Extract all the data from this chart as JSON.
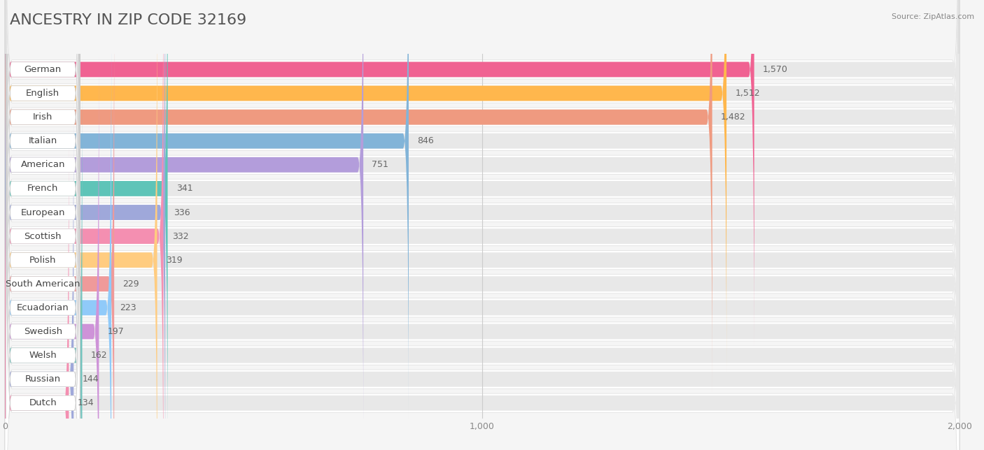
{
  "title": "ANCESTRY IN ZIP CODE 32169",
  "source": "Source: ZipAtlas.com",
  "categories": [
    "German",
    "English",
    "Irish",
    "Italian",
    "American",
    "French",
    "European",
    "Scottish",
    "Polish",
    "South American",
    "Ecuadorian",
    "Swedish",
    "Welsh",
    "Russian",
    "Dutch"
  ],
  "values": [
    1570,
    1512,
    1482,
    846,
    751,
    341,
    336,
    332,
    319,
    229,
    223,
    197,
    162,
    144,
    134
  ],
  "bar_colors": [
    "#F06292",
    "#FFB74D",
    "#EF9A80",
    "#82B4D8",
    "#B39DDB",
    "#5EC4B8",
    "#9FA8DA",
    "#F48FB1",
    "#FFCC80",
    "#EF9A9A",
    "#90CAF9",
    "#CE93D8",
    "#73C4BE",
    "#9FA8DA",
    "#F48FB1"
  ],
  "xlim": [
    0,
    2000
  ],
  "xticks": [
    0,
    1000,
    2000
  ],
  "xtick_labels": [
    "0",
    "1,000",
    "2,000"
  ],
  "background_color": "#f5f5f5",
  "row_bg_color": "#ffffff",
  "bar_bg_color": "#e8e8e8",
  "title_fontsize": 16,
  "label_fontsize": 9.5,
  "value_fontsize": 9
}
